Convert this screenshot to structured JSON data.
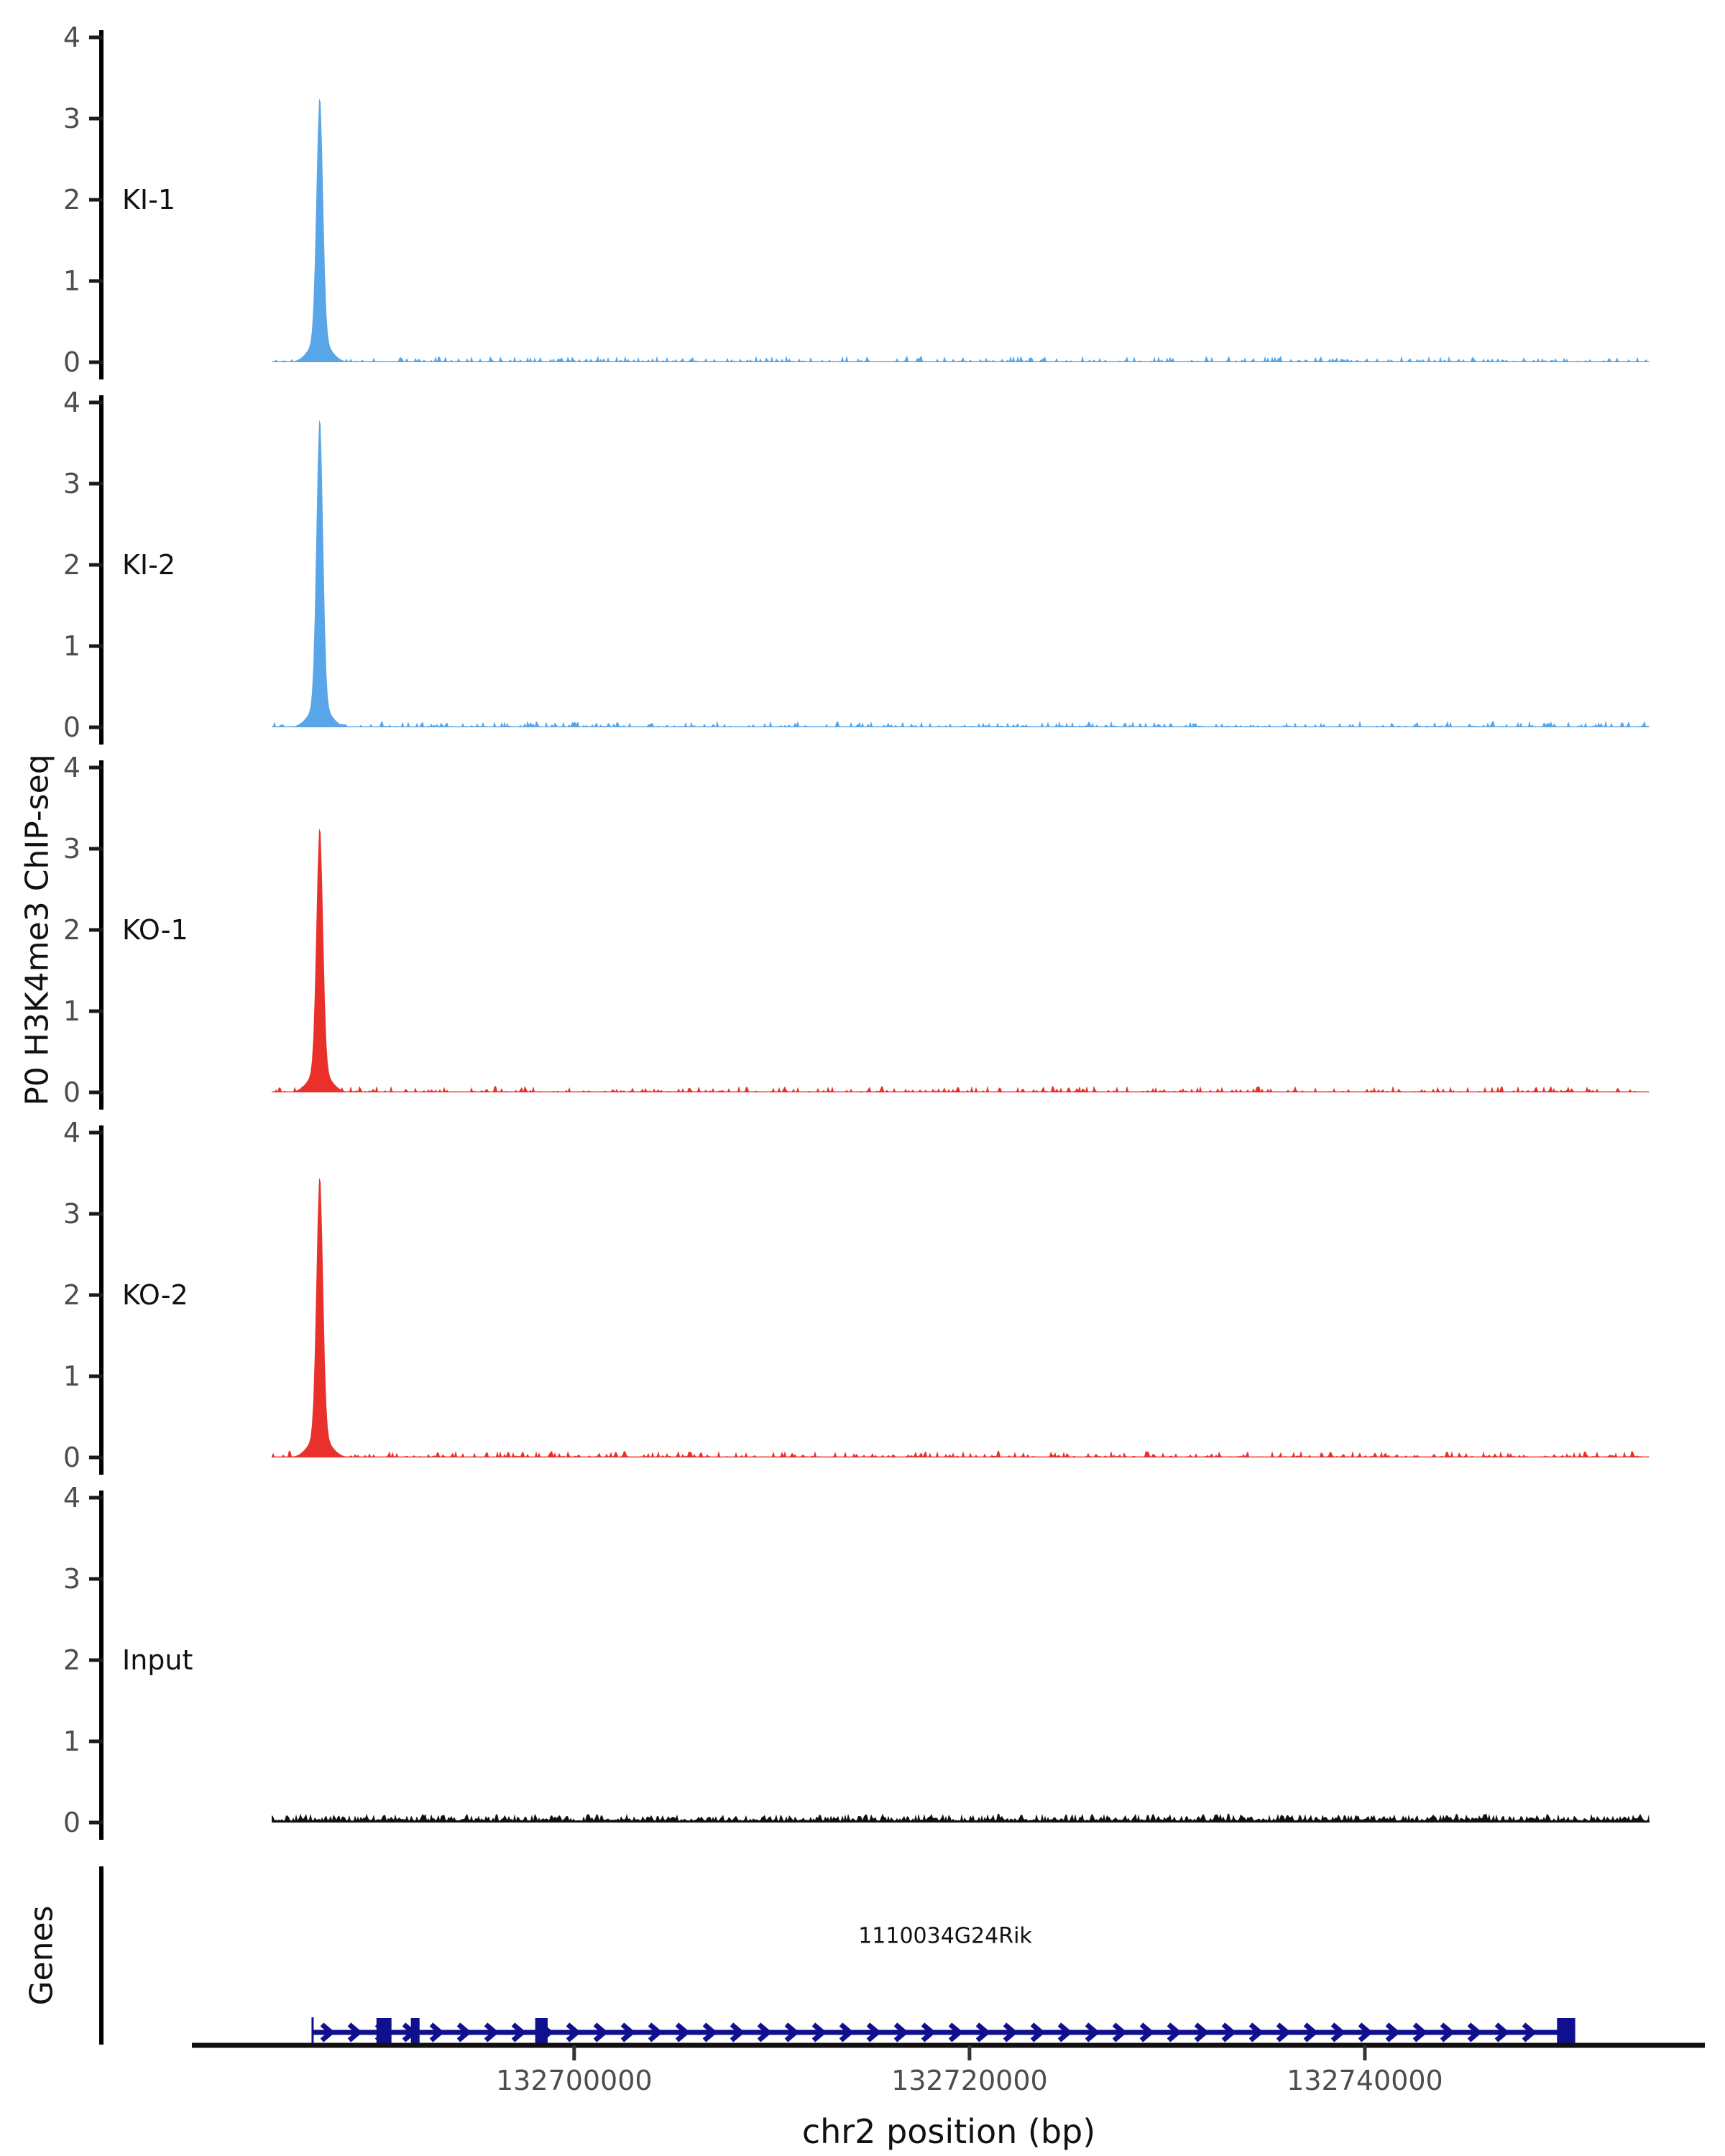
{
  "figure": {
    "ylabel": "P0 H3K4me3 ChIP-seq",
    "xlabel": "chr2 position (bp)",
    "genes_panel_label": "Genes",
    "background": "#FFFFFF",
    "axis_color": "#000000",
    "tick_label_color": "#4d4d4d"
  },
  "chart_data": {
    "type": "area",
    "title": "",
    "xlabel": "chr2 position (bp)",
    "ylabel": "P0 H3K4me3 ChIP-seq",
    "x_domain_bp": [
      132684700,
      132754400
    ],
    "x_ticks_bp": [
      132700000,
      132720000,
      132740000
    ],
    "x_tick_labels": [
      "132700000",
      "132720000",
      "132740000"
    ],
    "ylim": [
      0,
      4
    ],
    "y_ticks": [
      0,
      1,
      2,
      3,
      4
    ],
    "grid": false,
    "legend": "none",
    "tracks": [
      {
        "label": "KI-1",
        "color": "#58A5E8",
        "peak": {
          "center_bp": 132687130,
          "height": 3.3,
          "sigma_bp": 165,
          "base_height": 0.28,
          "base_sigma_bp": 520
        },
        "noise": {
          "amplitude": 0.07,
          "density": 0.4,
          "floor": 0.012,
          "seed": 11
        }
      },
      {
        "label": "KI-2",
        "color": "#58A5E8",
        "peak": {
          "center_bp": 132687130,
          "height": 3.85,
          "sigma_bp": 165,
          "base_height": 0.28,
          "base_sigma_bp": 520
        },
        "noise": {
          "amplitude": 0.07,
          "density": 0.4,
          "floor": 0.012,
          "seed": 22
        }
      },
      {
        "label": "KO-1",
        "color": "#E9302B",
        "peak": {
          "center_bp": 132687130,
          "height": 3.3,
          "sigma_bp": 165,
          "base_height": 0.28,
          "base_sigma_bp": 520
        },
        "noise": {
          "amplitude": 0.07,
          "density": 0.42,
          "floor": 0.012,
          "seed": 33
        }
      },
      {
        "label": "KO-2",
        "color": "#E9302B",
        "peak": {
          "center_bp": 132687130,
          "height": 3.5,
          "sigma_bp": 165,
          "base_height": 0.28,
          "base_sigma_bp": 520
        },
        "noise": {
          "amplitude": 0.07,
          "density": 0.42,
          "floor": 0.012,
          "seed": 44
        }
      },
      {
        "label": "Input",
        "color": "#111111",
        "peak": null,
        "noise": {
          "amplitude": 0.085,
          "density": 1.0,
          "floor": 0.025,
          "seed": 55
        }
      }
    ],
    "gene": {
      "name": "1110034G24Rik",
      "chrom": "chr2",
      "start_bp": 132686770,
      "end_bp": 132750640,
      "strand": "+",
      "color": "#10108E",
      "exons_bp": [
        [
          132690000,
          132690760
        ],
        [
          132691740,
          132692180
        ],
        [
          132698030,
          132698660
        ],
        [
          132749720,
          132750640
        ]
      ]
    }
  }
}
